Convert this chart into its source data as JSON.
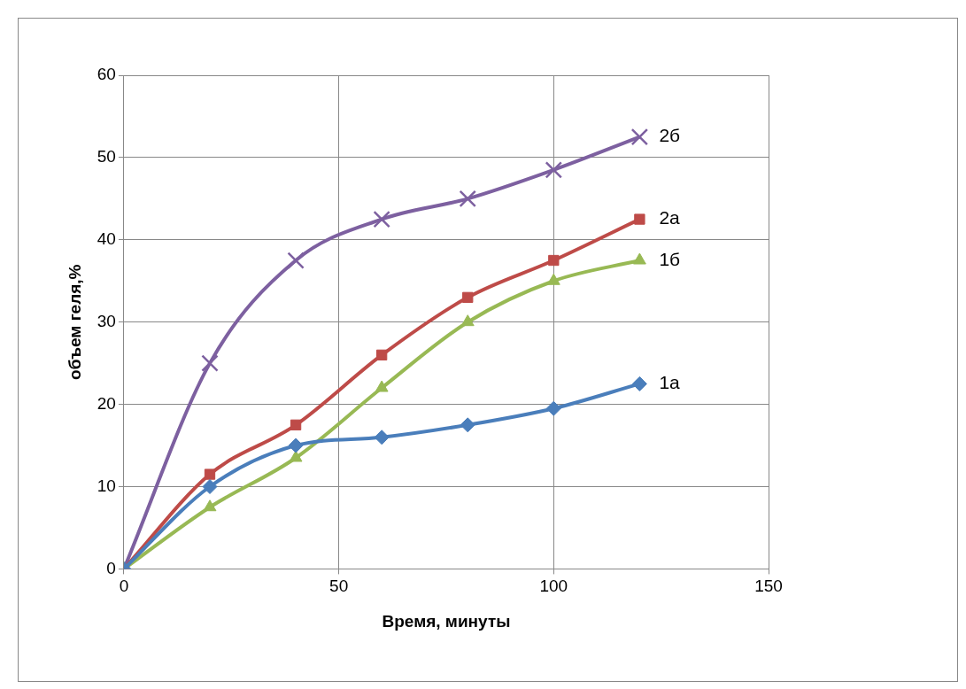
{
  "chart_data": {
    "type": "line",
    "xlabel": "Время, минуты",
    "ylabel": "объем геля,%",
    "x": [
      0,
      20,
      40,
      60,
      80,
      100,
      120
    ],
    "series": [
      {
        "name": "1а",
        "color": "#4a7ebb",
        "marker": "diamond",
        "values": [
          0,
          10,
          15,
          16,
          17.5,
          19.5,
          22.5
        ]
      },
      {
        "name": "2а",
        "color": "#be4b48",
        "marker": "square",
        "values": [
          0,
          11.5,
          17.5,
          26,
          33,
          37.5,
          42.5
        ]
      },
      {
        "name": "1б",
        "color": "#98b954",
        "marker": "triangle",
        "values": [
          0,
          7.5,
          13.5,
          22,
          30,
          35,
          37.5
        ]
      },
      {
        "name": "2б",
        "color": "#7d60a0",
        "marker": "cross",
        "values": [
          0,
          25,
          37.5,
          42.5,
          45,
          48.5,
          52.5
        ]
      }
    ],
    "xlim": [
      0,
      150
    ],
    "xticks": [
      0,
      50,
      100,
      150
    ],
    "ylim": [
      0,
      60
    ],
    "yticks": [
      0,
      10,
      20,
      30,
      40,
      50,
      60
    ],
    "grid": true,
    "legend": false
  }
}
